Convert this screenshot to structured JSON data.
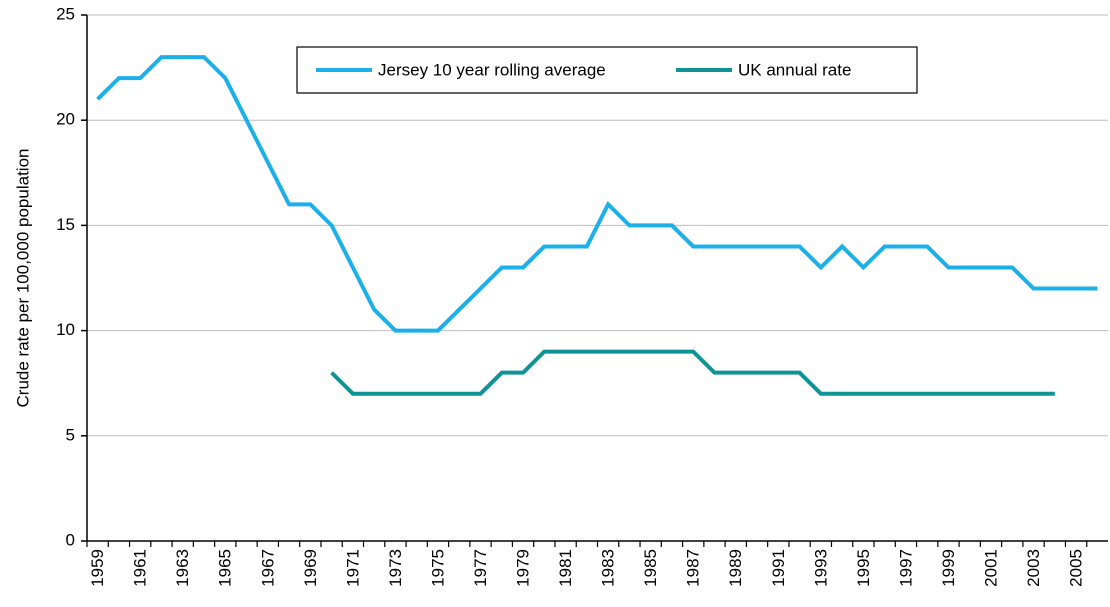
{
  "chart_data": {
    "type": "line",
    "ylabel": "Crude rate per 100,000 population",
    "categories": [
      "1959",
      null,
      "1961",
      null,
      "1963",
      null,
      "1965",
      null,
      "1967",
      null,
      "1969",
      null,
      "1971",
      null,
      "1973",
      null,
      "1975",
      null,
      "1977",
      null,
      "1979",
      null,
      "1981",
      null,
      "1983",
      null,
      "1985",
      null,
      "1987",
      null,
      "1989",
      null,
      "1991",
      null,
      "1993",
      null,
      "1995",
      null,
      "1997",
      null,
      "1999",
      null,
      "2001",
      null,
      "2003",
      null,
      "2005",
      null
    ],
    "series": [
      {
        "name": "Jersey 10 year rolling average",
        "color": "#1cb0ea",
        "values": [
          21,
          22,
          22,
          23,
          23,
          23,
          22,
          20,
          18,
          16,
          16,
          15,
          13,
          11,
          10,
          10,
          10,
          11,
          12,
          13,
          13,
          14,
          14,
          14,
          16,
          15,
          15,
          15,
          14,
          14,
          14,
          14,
          14,
          14,
          13,
          14,
          13,
          14,
          14,
          14,
          13,
          13,
          13,
          13,
          12,
          12,
          12,
          12
        ]
      },
      {
        "name": "UK annual rate",
        "color": "#0e9494",
        "values": [
          null,
          null,
          null,
          null,
          null,
          null,
          null,
          null,
          null,
          null,
          null,
          8,
          7,
          7,
          7,
          7,
          7,
          7,
          7,
          8,
          8,
          9,
          9,
          9,
          9,
          9,
          9,
          9,
          9,
          8,
          8,
          8,
          8,
          8,
          7,
          7,
          7,
          7,
          7,
          7,
          7,
          7,
          7,
          7,
          7,
          7,
          null,
          null
        ]
      }
    ],
    "ylim": [
      0,
      25
    ],
    "yticks": [
      0,
      5,
      10,
      15,
      20,
      25
    ],
    "grid": true,
    "legend": "top"
  }
}
